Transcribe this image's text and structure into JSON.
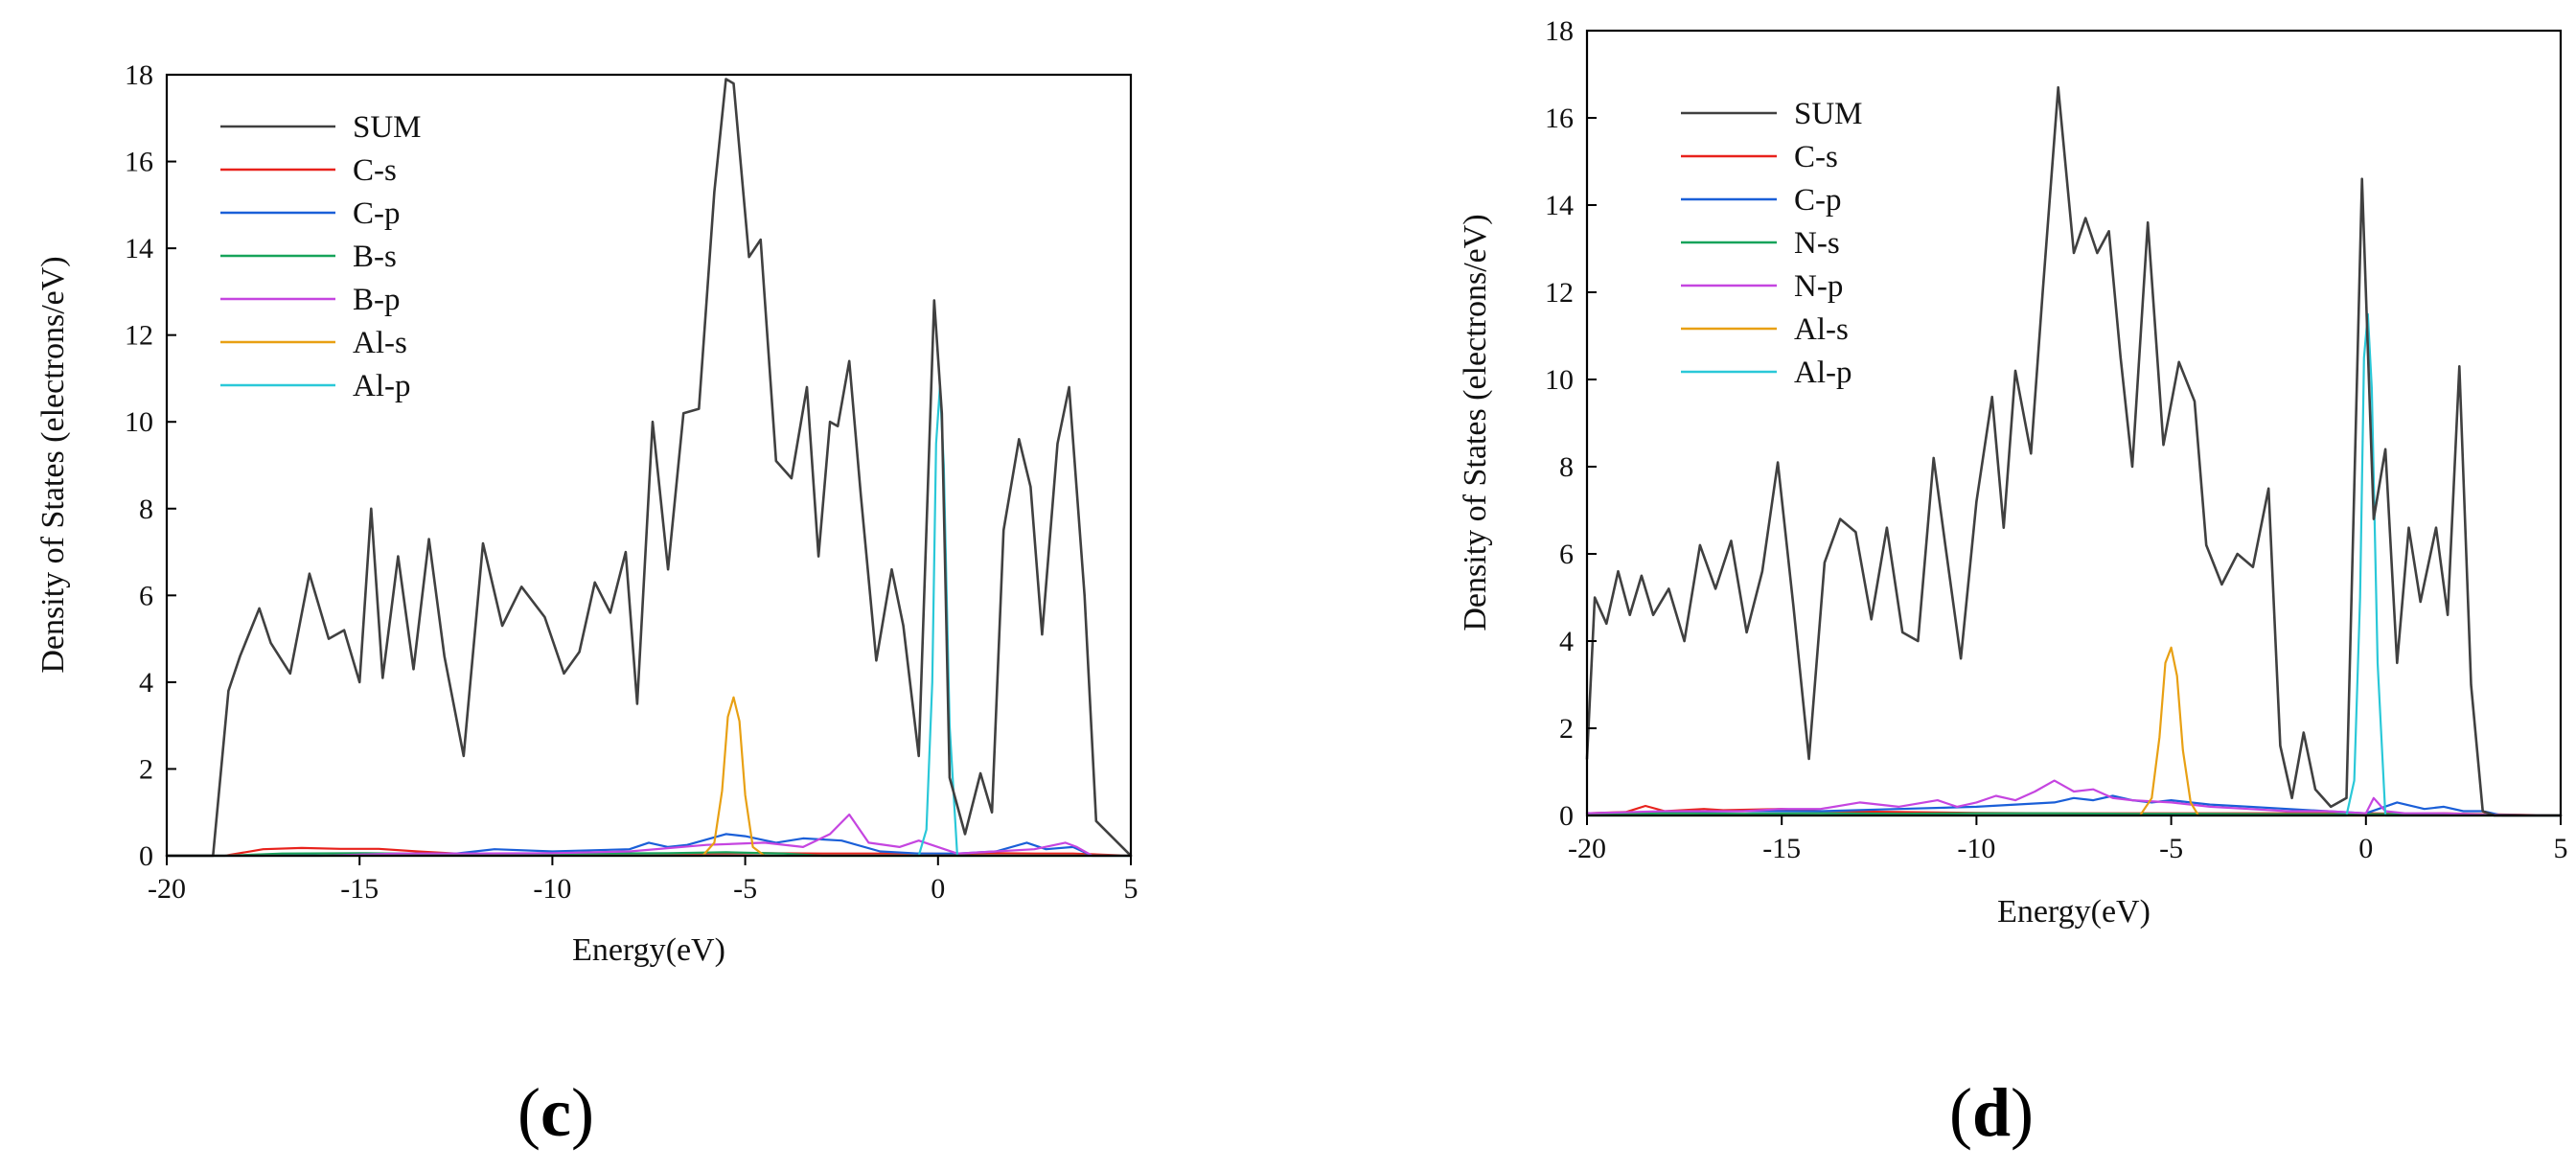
{
  "chart_data": [
    {
      "type": "line",
      "panel_label": {
        "open": "(",
        "letter": "c",
        "close": ")"
      },
      "xlabel": "Energy(eV)",
      "ylabel": "Density of States (electrons/eV)",
      "xlim": [
        -20,
        5
      ],
      "ylim": [
        0,
        18
      ],
      "xticks": [
        -20,
        -15,
        -10,
        -5,
        0,
        5
      ],
      "yticks": [
        0,
        2,
        4,
        6,
        8,
        10,
        12,
        14,
        16,
        18
      ],
      "legend_position": "top-left",
      "series": [
        {
          "name": "SUM",
          "color": "#404040",
          "x": [
            -20,
            -18.8,
            -18.4,
            -18.1,
            -17.6,
            -17.3,
            -16.8,
            -16.3,
            -15.8,
            -15.4,
            -15.0,
            -14.7,
            -14.4,
            -14.0,
            -13.6,
            -13.2,
            -12.8,
            -12.3,
            -11.8,
            -11.3,
            -10.8,
            -10.2,
            -9.7,
            -9.3,
            -8.9,
            -8.5,
            -8.1,
            -7.8,
            -7.4,
            -7.0,
            -6.6,
            -6.2,
            -5.8,
            -5.5,
            -5.3,
            -4.9,
            -4.6,
            -4.2,
            -3.8,
            -3.4,
            -3.1,
            -2.8,
            -2.6,
            -2.3,
            -2.0,
            -1.6,
            -1.2,
            -0.9,
            -0.5,
            -0.1,
            0.1,
            0.3,
            0.7,
            1.1,
            1.4,
            1.7,
            2.1,
            2.4,
            2.7,
            3.1,
            3.4,
            3.8,
            4.1,
            5.0
          ],
          "y": [
            0,
            0,
            3.8,
            4.6,
            5.7,
            4.9,
            4.2,
            6.5,
            5.0,
            5.2,
            4.0,
            8.0,
            4.1,
            6.9,
            4.3,
            7.3,
            4.6,
            2.3,
            7.2,
            5.3,
            6.2,
            5.5,
            4.2,
            4.7,
            6.3,
            5.6,
            7.0,
            3.5,
            10.0,
            6.6,
            10.2,
            10.3,
            15.3,
            17.9,
            17.8,
            13.8,
            14.2,
            9.1,
            8.7,
            10.8,
            6.9,
            10.0,
            9.9,
            11.4,
            8.3,
            4.5,
            6.6,
            5.3,
            2.3,
            12.8,
            10.2,
            1.8,
            0.5,
            1.9,
            1.0,
            7.5,
            9.6,
            8.5,
            5.1,
            9.5,
            10.8,
            6.0,
            0.8,
            0
          ]
        },
        {
          "name": "C-s",
          "color": "#e8221c",
          "x": [
            -20,
            -18.5,
            -17.5,
            -16.5,
            -15.5,
            -14.5,
            -13.5,
            -12.5,
            -11.5,
            -10.0,
            -8.0,
            -6.0,
            -4.5,
            -3.0,
            -1.5,
            -0.5,
            0.5,
            1.5,
            2.5,
            3.5,
            5.0
          ],
          "y": [
            0,
            0,
            0.15,
            0.18,
            0.16,
            0.16,
            0.1,
            0.05,
            0.04,
            0.06,
            0.05,
            0.05,
            0.06,
            0.05,
            0.05,
            0.05,
            0.04,
            0.06,
            0.05,
            0.05,
            0
          ]
        },
        {
          "name": "C-p",
          "color": "#1a5fd8",
          "x": [
            -20,
            -17.5,
            -16.0,
            -14.0,
            -12.5,
            -11.5,
            -10.0,
            -8.0,
            -7.5,
            -7.0,
            -6.5,
            -5.5,
            -5.0,
            -4.2,
            -3.5,
            -2.5,
            -1.5,
            -0.5,
            0.5,
            1.5,
            2.3,
            2.8,
            3.5,
            4.0,
            5.0
          ],
          "y": [
            0,
            0,
            0.05,
            0.05,
            0.05,
            0.15,
            0.1,
            0.15,
            0.3,
            0.2,
            0.25,
            0.5,
            0.45,
            0.3,
            0.4,
            0.35,
            0.1,
            0.05,
            0.05,
            0.1,
            0.3,
            0.15,
            0.2,
            0,
            0
          ]
        },
        {
          "name": "B-s",
          "color": "#16a35a",
          "x": [
            -20,
            -18.5,
            -17.0,
            -15.0,
            -13.0,
            -11.0,
            -9.0,
            -7.0,
            -5.5,
            -4.0,
            -3.0,
            5.0
          ],
          "y": [
            0,
            0,
            0.05,
            0.06,
            0.04,
            0.04,
            0.05,
            0.06,
            0.08,
            0.05,
            0,
            0
          ]
        },
        {
          "name": "B-p",
          "color": "#c545e0",
          "x": [
            -20,
            -16.0,
            -14.0,
            -12.0,
            -10.0,
            -8.0,
            -6.0,
            -4.5,
            -3.5,
            -2.8,
            -2.3,
            -1.8,
            -1.0,
            -0.5,
            0.5,
            1.5,
            2.5,
            3.3,
            3.6,
            4.0,
            5.0
          ],
          "y": [
            0,
            0,
            0.05,
            0.05,
            0.06,
            0.1,
            0.25,
            0.3,
            0.2,
            0.5,
            0.95,
            0.3,
            0.2,
            0.35,
            0.05,
            0.1,
            0.15,
            0.3,
            0.2,
            0,
            0
          ]
        },
        {
          "name": "Al-s",
          "color": "#e8a013",
          "x": [
            -20,
            -6.1,
            -5.8,
            -5.6,
            -5.45,
            -5.3,
            -5.15,
            -5.0,
            -4.8,
            -4.5,
            5.0
          ],
          "y": [
            0,
            0,
            0.3,
            1.5,
            3.2,
            3.65,
            3.1,
            1.4,
            0.2,
            0,
            0
          ]
        },
        {
          "name": "Al-p",
          "color": "#2ac8d8",
          "x": [
            -20,
            -0.5,
            -0.3,
            -0.15,
            -0.05,
            0.05,
            0.15,
            0.3,
            0.5,
            5.0
          ],
          "y": [
            0,
            0,
            0.6,
            4.0,
            9.5,
            10.8,
            9.0,
            3.0,
            0,
            0
          ]
        }
      ]
    },
    {
      "type": "line",
      "panel_label": {
        "open": "(",
        "letter": "d",
        "close": ")"
      },
      "xlabel": "Energy(eV)",
      "ylabel": "Density of States (electrons/eV)",
      "xlim": [
        -20,
        5
      ],
      "ylim": [
        0,
        18
      ],
      "xticks": [
        -20,
        -15,
        -10,
        -5,
        0,
        5
      ],
      "yticks": [
        0,
        2,
        4,
        6,
        8,
        10,
        12,
        14,
        16,
        18
      ],
      "legend_position": "top-left",
      "series": [
        {
          "name": "SUM",
          "color": "#404040",
          "x": [
            -20,
            -19.8,
            -19.5,
            -19.2,
            -18.9,
            -18.6,
            -18.3,
            -17.9,
            -17.5,
            -17.1,
            -16.7,
            -16.3,
            -15.9,
            -15.5,
            -15.1,
            -14.7,
            -14.3,
            -13.9,
            -13.5,
            -13.1,
            -12.7,
            -12.3,
            -11.9,
            -11.5,
            -11.1,
            -10.8,
            -10.4,
            -10.0,
            -9.6,
            -9.3,
            -9.0,
            -8.6,
            -8.3,
            -7.9,
            -7.5,
            -7.2,
            -6.9,
            -6.6,
            -6.3,
            -6.0,
            -5.6,
            -5.2,
            -4.8,
            -4.4,
            -4.1,
            -3.7,
            -3.3,
            -2.9,
            -2.5,
            -2.2,
            -1.9,
            -1.6,
            -1.3,
            -0.9,
            -0.5,
            -0.1,
            0.2,
            0.5,
            0.8,
            1.1,
            1.4,
            1.8,
            2.1,
            2.4,
            2.7,
            3.0,
            3.3,
            5.0
          ],
          "y": [
            1.3,
            5.0,
            4.4,
            5.6,
            4.6,
            5.5,
            4.6,
            5.2,
            4.0,
            6.2,
            5.2,
            6.3,
            4.2,
            5.6,
            8.1,
            4.8,
            1.3,
            5.8,
            6.8,
            6.5,
            4.5,
            6.6,
            4.2,
            4.0,
            8.2,
            6.2,
            3.6,
            7.2,
            9.6,
            6.6,
            10.2,
            8.3,
            12.0,
            16.7,
            12.9,
            13.7,
            12.9,
            13.4,
            10.5,
            8.0,
            13.6,
            8.5,
            10.4,
            9.5,
            6.2,
            5.3,
            6.0,
            5.7,
            7.5,
            1.6,
            0.4,
            1.9,
            0.6,
            0.2,
            0.4,
            14.6,
            6.8,
            8.4,
            3.5,
            6.6,
            4.9,
            6.6,
            4.6,
            10.3,
            3.0,
            0.1,
            0,
            0
          ]
        },
        {
          "name": "C-s",
          "color": "#e8221c",
          "x": [
            -20,
            -19.0,
            -18.5,
            -18.0,
            -17.0,
            -16.5,
            -15.0,
            -14.0,
            -12.0,
            -10.0,
            -8.0,
            -6.0,
            -4.0,
            -2.0,
            0.0,
            1.0,
            2.0,
            3.0,
            5.0
          ],
          "y": [
            0.05,
            0.08,
            0.22,
            0.1,
            0.15,
            0.12,
            0.15,
            0.1,
            0.08,
            0.06,
            0.05,
            0.05,
            0.05,
            0.05,
            0.05,
            0.04,
            0.05,
            0.03,
            0
          ]
        },
        {
          "name": "C-p",
          "color": "#1a5fd8",
          "x": [
            -20,
            -18.0,
            -16.0,
            -14.0,
            -12.0,
            -10.0,
            -9.0,
            -8.0,
            -7.5,
            -7.0,
            -6.5,
            -6.0,
            -5.5,
            -5.0,
            -4.5,
            -4.0,
            -3.0,
            -2.0,
            -1.0,
            0.0,
            0.8,
            1.5,
            2.0,
            2.5,
            3.0,
            3.5,
            5.0
          ],
          "y": [
            0.05,
            0.08,
            0.1,
            0.1,
            0.15,
            0.2,
            0.25,
            0.3,
            0.4,
            0.35,
            0.45,
            0.35,
            0.3,
            0.35,
            0.3,
            0.25,
            0.2,
            0.15,
            0.1,
            0.05,
            0.3,
            0.15,
            0.2,
            0.1,
            0.1,
            0,
            0
          ]
        },
        {
          "name": "N-s",
          "color": "#16a35a",
          "x": [
            -20,
            -18.0,
            -16.0,
            -14.0,
            -12.0,
            -10.0,
            -8.0,
            -6.0,
            -4.0,
            -2.0,
            0.0,
            2.0,
            5.0
          ],
          "y": [
            0.02,
            0.05,
            0.04,
            0.05,
            0.04,
            0.05,
            0.05,
            0.04,
            0.04,
            0.03,
            0.03,
            0.03,
            0
          ]
        },
        {
          "name": "N-p",
          "color": "#c545e0",
          "x": [
            -20,
            -18.0,
            -16.0,
            -15.0,
            -14.0,
            -13.0,
            -12.0,
            -11.0,
            -10.5,
            -10.0,
            -9.5,
            -9.0,
            -8.5,
            -8.0,
            -7.5,
            -7.0,
            -6.5,
            -6.0,
            -5.0,
            -4.0,
            -3.0,
            -2.0,
            -1.0,
            0.0,
            0.2,
            0.5,
            1.0,
            2.0,
            3.0,
            5.0
          ],
          "y": [
            0.05,
            0.1,
            0.1,
            0.15,
            0.15,
            0.3,
            0.2,
            0.35,
            0.2,
            0.3,
            0.45,
            0.35,
            0.55,
            0.8,
            0.55,
            0.6,
            0.4,
            0.35,
            0.3,
            0.2,
            0.15,
            0.1,
            0.1,
            0.05,
            0.4,
            0.1,
            0.05,
            0.05,
            0.02,
            0
          ]
        },
        {
          "name": "Al-s",
          "color": "#e8a013",
          "x": [
            -20,
            -5.8,
            -5.5,
            -5.3,
            -5.15,
            -5.0,
            -4.85,
            -4.7,
            -4.5,
            -4.3,
            5.0
          ],
          "y": [
            0,
            0,
            0.4,
            1.8,
            3.5,
            3.85,
            3.2,
            1.5,
            0.3,
            0,
            0
          ]
        },
        {
          "name": "Al-p",
          "color": "#2ac8d8",
          "x": [
            -20,
            -0.5,
            -0.3,
            -0.15,
            -0.05,
            0.05,
            0.15,
            0.3,
            0.5,
            5.0
          ],
          "y": [
            0,
            0,
            0.8,
            5.0,
            10.5,
            11.5,
            9.8,
            3.5,
            0,
            0
          ]
        }
      ]
    }
  ]
}
